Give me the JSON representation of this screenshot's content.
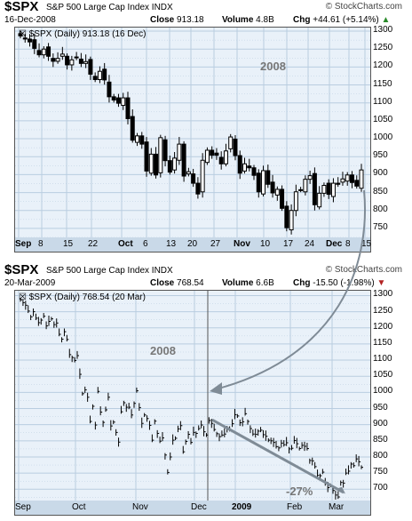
{
  "colors": {
    "plot_bg": "#e9f1f9",
    "grid": "#b9cde0",
    "axis_bar": "#c9d9e8",
    "arrow": "#7f8b96",
    "candle": "#000000",
    "chg_up": "#2a8a2a",
    "chg_down": "#b22222"
  },
  "panel1": {
    "symbol": "$SPX",
    "name": "S&P 500 Large Cap Index",
    "exchange": "INDX",
    "date": "16-Dec-2008",
    "close_label": "Close",
    "close": "913.18",
    "volume_label": "Volume",
    "volume": "4.8B",
    "chg_label": "Chg",
    "chg": "+44.61 (+5.14%)",
    "chg_arrow": "▲",
    "legend": "$SPX (Daily) 913.18 (16 Dec)",
    "watermark": "© StockCharts.com",
    "annotation": "2008"
  },
  "panel2": {
    "symbol": "$SPX",
    "name": "S&P 500 Large Cap Index",
    "exchange": "INDX",
    "date": "20-Mar-2009",
    "close_label": "Close",
    "close": "768.54",
    "volume_label": "Volume",
    "volume": "6.6B",
    "chg_label": "Chg",
    "chg": "-15.50 (-1.98%)",
    "chg_arrow": "▼",
    "legend": "$SPX (Daily) 768.54 (20 Mar)",
    "watermark": "© StockCharts.com",
    "annotation_year": "2008",
    "annotation_pct": "-27%"
  },
  "chart_data": [
    {
      "type": "candlestick",
      "title": "$SPX (Daily) 913.18 (16 Dec)",
      "x_ticks": [
        {
          "label": "Sep",
          "bold": true
        },
        {
          "label": "8"
        },
        {
          "label": "15"
        },
        {
          "label": "22"
        },
        {
          "label": "Oct",
          "bold": true
        },
        {
          "label": "6"
        },
        {
          "label": "13"
        },
        {
          "label": "20"
        },
        {
          "label": "27"
        },
        {
          "label": "Nov",
          "bold": true
        },
        {
          "label": "10"
        },
        {
          "label": "17"
        },
        {
          "label": "24"
        },
        {
          "label": "Dec",
          "bold": true
        },
        {
          "label": "8"
        },
        {
          "label": "15"
        }
      ],
      "y_ticks": [
        1300,
        1250,
        1200,
        1150,
        1100,
        1050,
        1000,
        950,
        900,
        850,
        800,
        750
      ],
      "ylim": [
        725,
        1310
      ],
      "grid": true,
      "closes": [
        1287,
        1278,
        1270,
        1252,
        1234,
        1250,
        1230,
        1216,
        1224,
        1236,
        1206,
        1220,
        1228,
        1210,
        1215,
        1180,
        1165,
        1188,
        1164,
        1117,
        1108,
        1099,
        1114,
        1056,
        996,
        1008,
        985,
        910,
        957,
        899,
        1003,
        939,
        907,
        946,
        985,
        896,
        908,
        876,
        846,
        940,
        968,
        954,
        954,
        930,
        966,
        1005,
        953,
        904,
        930,
        919,
        898,
        852,
        911,
        873,
        849,
        859,
        806,
        752,
        800,
        852,
        858,
        887,
        897,
        816,
        848,
        870,
        845,
        876,
        873,
        888,
        899,
        878,
        868,
        913
      ]
    },
    {
      "type": "line",
      "title": "$SPX (Daily) 768.54 (20 Mar)",
      "x_ticks": [
        {
          "label": "Sep"
        },
        {
          "label": "Oct"
        },
        {
          "label": "Nov"
        },
        {
          "label": "Dec"
        },
        {
          "label": "2009",
          "bold": true
        },
        {
          "label": "Feb"
        },
        {
          "label": "Mar"
        }
      ],
      "y_ticks": [
        1300,
        1250,
        1200,
        1150,
        1100,
        1050,
        1000,
        950,
        900,
        850,
        800,
        750,
        700
      ],
      "ylim": [
        665,
        1315
      ],
      "grid": true,
      "closes": [
        1287,
        1278,
        1270,
        1252,
        1234,
        1250,
        1230,
        1216,
        1224,
        1236,
        1206,
        1220,
        1228,
        1210,
        1215,
        1180,
        1165,
        1188,
        1164,
        1117,
        1108,
        1099,
        1114,
        1056,
        996,
        1008,
        985,
        910,
        957,
        899,
        1003,
        939,
        907,
        946,
        985,
        896,
        908,
        876,
        846,
        940,
        968,
        954,
        954,
        930,
        966,
        1005,
        953,
        904,
        930,
        919,
        898,
        852,
        911,
        873,
        849,
        859,
        806,
        752,
        800,
        852,
        858,
        887,
        897,
        816,
        848,
        870,
        845,
        876,
        873,
        888,
        899,
        878,
        868,
        913,
        904,
        885,
        872,
        863,
        868,
        871,
        890,
        885,
        903,
        931,
        927,
        906,
        909,
        934,
        910,
        888,
        871,
        870,
        880,
        883,
        869,
        864,
        852,
        850,
        845,
        832,
        828,
        843,
        838,
        844,
        825,
        827,
        851,
        841,
        826,
        836,
        833,
        826,
        789,
        788,
        770,
        743,
        742,
        753,
        721,
        705,
        712,
        696,
        682,
        676,
        721,
        719,
        750,
        756,
        778,
        773,
        794,
        785,
        768
      ]
    }
  ]
}
